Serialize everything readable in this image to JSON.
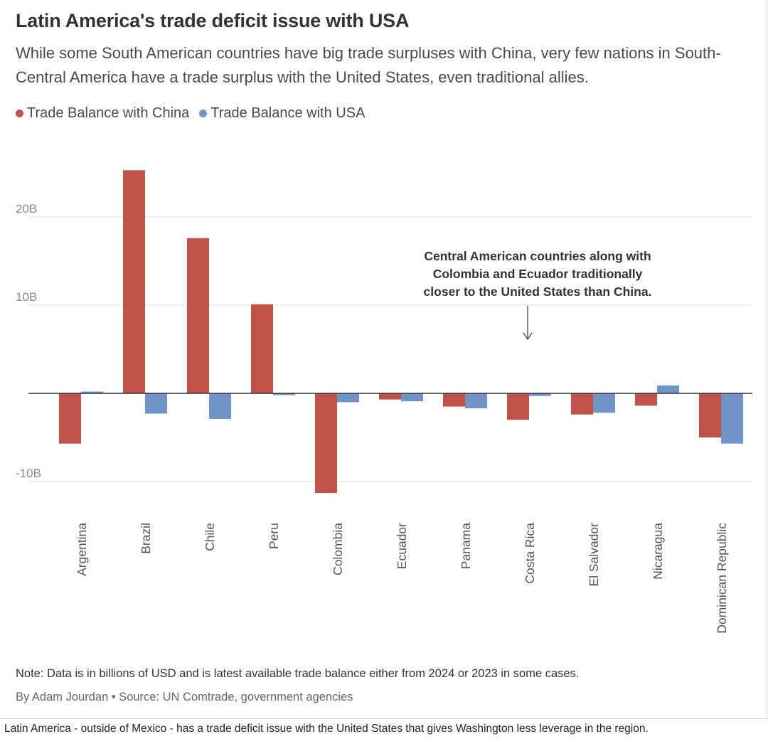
{
  "chart_data": {
    "type": "bar",
    "title": "Latin America's trade deficit issue with USA",
    "subtitle": "While some South American countries have big trade surpluses with China, very few nations in South-Central America have a trade surplus with the United States, even traditional allies.",
    "categories": [
      "Argentina",
      "Brazil",
      "Chile",
      "Peru",
      "Colombia",
      "Ecuador",
      "Panama",
      "Costa Rica",
      "El Salvador",
      "Nicaragua",
      "Dominican Republic"
    ],
    "series": [
      {
        "name": "Trade Balance with China",
        "color": "#c0524a",
        "values": [
          -5.7,
          25.3,
          17.6,
          10.1,
          -11.3,
          -0.7,
          -1.5,
          -3.0,
          -2.4,
          -1.4,
          -5.0
        ]
      },
      {
        "name": "Trade Balance with USA",
        "color": "#7094c8",
        "values": [
          0.2,
          -2.3,
          -2.9,
          -0.2,
          -1.0,
          -0.9,
          -1.7,
          -0.3,
          -2.2,
          0.9,
          -5.7
        ]
      }
    ],
    "yticks": [
      {
        "value": 20,
        "label": "20B"
      },
      {
        "value": 10,
        "label": "10B"
      },
      {
        "value": -10,
        "label": "-10B"
      }
    ],
    "ylim": [
      -10,
      25.3
    ],
    "grid": true,
    "legend": "top-left",
    "annotation": {
      "lines": [
        "Central American countries along with",
        "Colombia and Ecuador traditionally",
        "closer to the United States than China."
      ]
    }
  },
  "footer": {
    "note": "Note: Data is in billions of USD and is latest available trade balance either from 2024 or 2023 in some cases.",
    "byline": "By Adam Jourdan • Source: UN Comtrade, government agencies"
  },
  "caption": "Latin America - outside of Mexico - has a trade deficit issue with the United States that gives Washington less leverage in the region."
}
